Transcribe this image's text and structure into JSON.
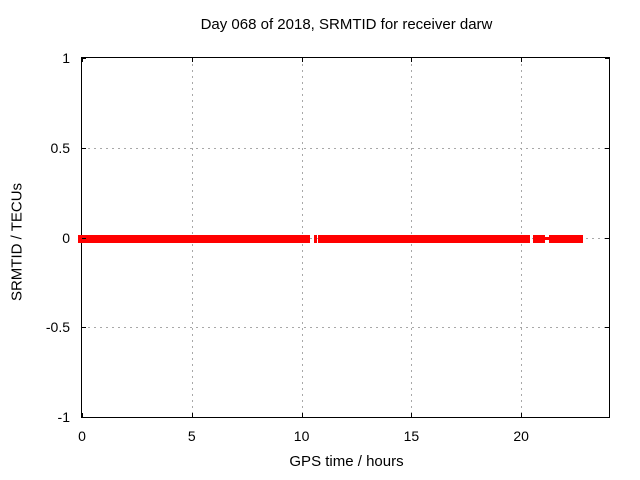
{
  "figure": {
    "background": "#ffffff"
  },
  "chart_data": {
    "type": "scatter",
    "title": "Day 068 of 2018, SRMTID for receiver darw",
    "xlabel": "GPS time / hours",
    "ylabel": "SRMTID / TECUs",
    "xlim": [
      0,
      24
    ],
    "ylim": [
      -1,
      1
    ],
    "xticks": [
      0,
      5,
      10,
      15,
      20
    ],
    "yticks": [
      1,
      0.5,
      0,
      -0.5,
      -1
    ],
    "grid": true,
    "legend": "none",
    "axis_color": "#000000",
    "grid_color": "#a8a8a8",
    "series": [
      {
        "name": "SRMTID",
        "color": "#ff0000",
        "style": "points",
        "y_value": 0,
        "segments_hours": [
          [
            -0.18,
            10.36
          ],
          [
            10.55,
            10.68
          ],
          [
            10.77,
            20.41
          ],
          [
            20.55,
            21.07
          ],
          [
            21.25,
            22.82
          ]
        ],
        "thin_connectors_hours": [
          [
            21.05,
            21.27
          ]
        ]
      }
    ]
  }
}
